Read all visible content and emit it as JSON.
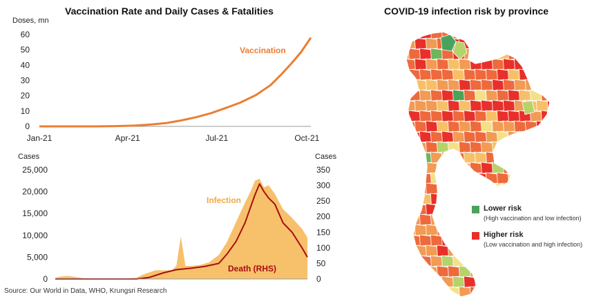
{
  "left_title": "Vaccination  Rate and Daily Cases & Fatalities",
  "right_title": "COVID-19 infection risk by province",
  "source": "Source: Our World in Data, WHO, Krungsri Research",
  "chart_data": [
    {
      "type": "line",
      "ylabel": "Doses, mn",
      "ylim": [
        0,
        60
      ],
      "yticks": [
        "0",
        "10",
        "20",
        "30",
        "40",
        "50",
        "60"
      ],
      "xticks": [
        "Jan-21",
        "Apr-21",
        "Jul-21",
        "Oct-21"
      ],
      "series": [
        {
          "name": "Vaccination",
          "color": "#ED7D31",
          "x": [
            "2021-01-01",
            "2021-02-28",
            "2021-03-20",
            "2021-04-10",
            "2021-04-25",
            "2021-05-10",
            "2021-05-25",
            "2021-06-10",
            "2021-06-25",
            "2021-07-10",
            "2021-07-25",
            "2021-08-10",
            "2021-08-25",
            "2021-09-05",
            "2021-09-15",
            "2021-09-25",
            "2021-10-05"
          ],
          "y": [
            0,
            0,
            0.2,
            0.6,
            1.2,
            2.1,
            3.8,
            6.0,
            8.6,
            12.0,
            15.5,
            20.5,
            27.0,
            34.0,
            41.0,
            48.5,
            58.0
          ]
        }
      ]
    },
    {
      "type": "area",
      "ylabel_left": "Cases",
      "ylabel_right": "Cases",
      "ylim_left": [
        0,
        25000
      ],
      "ylim_right": [
        0,
        350
      ],
      "yticks_left": [
        "0",
        "5,000",
        "10,000",
        "15,000",
        "20,000",
        "25,000"
      ],
      "yticks_right": [
        "0",
        "50",
        "100",
        "150",
        "200",
        "250",
        "300",
        "350"
      ],
      "series": [
        {
          "name": "Infection",
          "axis": "left",
          "color": "#F7C06B",
          "x": [
            "2021-01-01",
            "2021-01-08",
            "2021-01-15",
            "2021-01-22",
            "2021-02-01",
            "2021-02-15",
            "2021-03-01",
            "2021-03-15",
            "2021-04-01",
            "2021-04-08",
            "2021-04-15",
            "2021-04-22",
            "2021-05-01",
            "2021-05-10",
            "2021-05-15",
            "2021-05-20",
            "2021-05-25",
            "2021-06-01",
            "2021-06-10",
            "2021-06-20",
            "2021-07-01",
            "2021-07-10",
            "2021-07-20",
            "2021-07-30",
            "2021-08-05",
            "2021-08-10",
            "2021-08-15",
            "2021-08-20",
            "2021-08-25",
            "2021-09-01",
            "2021-09-10",
            "2021-09-20",
            "2021-10-01",
            "2021-10-07"
          ],
          "y": [
            300,
            600,
            700,
            500,
            200,
            150,
            100,
            100,
            300,
            1000,
            1500,
            2000,
            2000,
            2000,
            3000,
            9800,
            3000,
            3000,
            3200,
            3800,
            5500,
            8500,
            13000,
            17500,
            20000,
            22500,
            23000,
            21000,
            21500,
            19500,
            16000,
            14000,
            11500,
            9500
          ]
        },
        {
          "name": "Death (RHS)",
          "axis": "right",
          "color": "#A50F0F",
          "x": [
            "2021-01-01",
            "2021-03-01",
            "2021-04-01",
            "2021-04-15",
            "2021-05-01",
            "2021-05-15",
            "2021-06-01",
            "2021-06-15",
            "2021-07-01",
            "2021-07-10",
            "2021-07-20",
            "2021-07-30",
            "2021-08-05",
            "2021-08-10",
            "2021-08-15",
            "2021-08-20",
            "2021-08-25",
            "2021-09-01",
            "2021-09-10",
            "2021-09-20",
            "2021-10-01",
            "2021-10-07"
          ],
          "y": [
            0,
            0,
            0,
            5,
            20,
            30,
            35,
            40,
            50,
            80,
            120,
            180,
            230,
            270,
            305,
            280,
            260,
            240,
            180,
            150,
            100,
            70
          ]
        }
      ],
      "annotations": [
        "Infection",
        "Death (RHS)"
      ]
    }
  ],
  "map": {
    "legend": [
      {
        "label": "Lower risk",
        "sub": "(High vaccination and low infection)",
        "color": "#4AA35A"
      },
      {
        "label": "Higher risk",
        "sub": "(Low vaccination and high infection)",
        "color": "#E8302B"
      }
    ],
    "province_colors": [
      "#E8302B",
      "#EE6A3C",
      "#F29B54",
      "#F7C068",
      "#F5E08A",
      "#B5D36A",
      "#6DB65B",
      "#4AA35A"
    ]
  }
}
